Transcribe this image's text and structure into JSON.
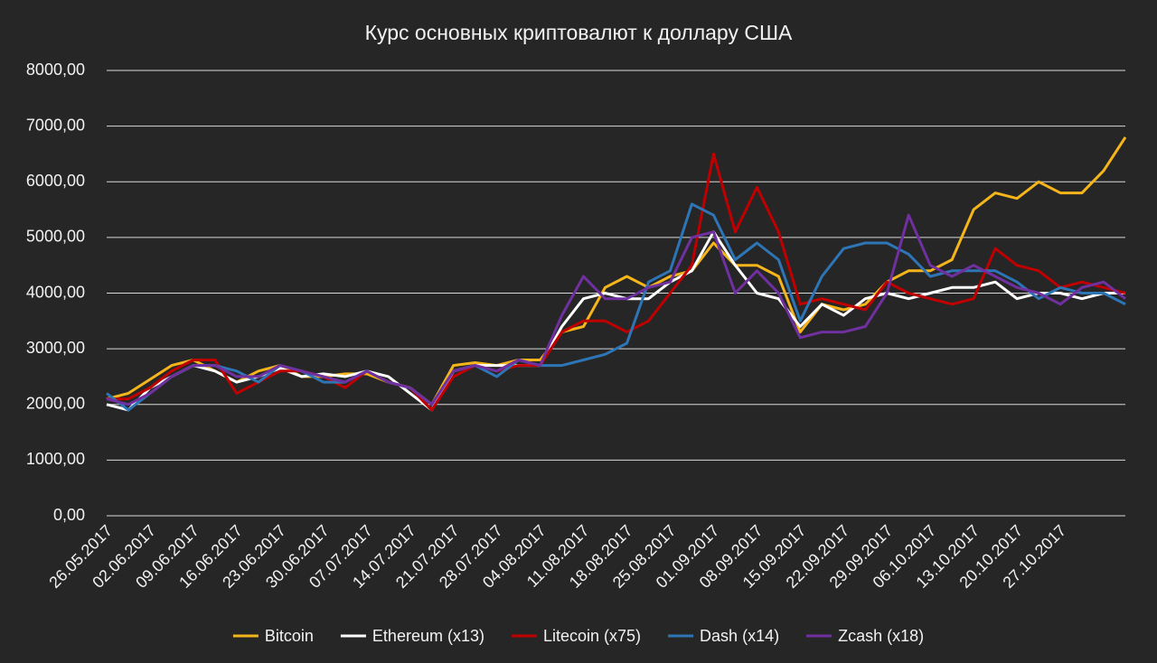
{
  "chart_data": {
    "type": "line",
    "title": "Курс основных криптовалют к доллару США",
    "categories": [
      "26.05.2017",
      null,
      "02.06.2017",
      null,
      "09.06.2017",
      null,
      "16.06.2017",
      null,
      "23.06.2017",
      null,
      "30.06.2017",
      null,
      "07.07.2017",
      null,
      "14.07.2017",
      null,
      "21.07.2017",
      null,
      "28.07.2017",
      null,
      "04.08.2017",
      null,
      "11.08.2017",
      null,
      "18.08.2017",
      null,
      "25.08.2017",
      null,
      "01.09.2017",
      null,
      "08.09.2017",
      null,
      "15.09.2017",
      null,
      "22.09.2017",
      null,
      "29.09.2017",
      null,
      "06.10.2017",
      null,
      "13.10.2017",
      null,
      "20.10.2017",
      null,
      "27.10.2017",
      null,
      null,
      null
    ],
    "series": [
      {
        "name": "Bitcoin",
        "color": "#f5b51b",
        "values": [
          2100,
          2200,
          2450,
          2700,
          2800,
          2600,
          2400,
          2600,
          2700,
          2500,
          2500,
          2550,
          2550,
          2400,
          2300,
          2000,
          2700,
          2750,
          2700,
          2800,
          2800,
          3300,
          3400,
          4100,
          4300,
          4100,
          4300,
          4400,
          4900,
          4500,
          4500,
          4300,
          3300,
          3800,
          3700,
          3800,
          4200,
          4400,
          4400,
          4600,
          5500,
          5800,
          5700,
          6000,
          5800,
          5800,
          6200,
          6800
        ]
      },
      {
        "name": "Ethereum (x13)",
        "color": "#ffffff",
        "values": [
          2000,
          1900,
          2300,
          2500,
          2700,
          2600,
          2400,
          2500,
          2650,
          2500,
          2550,
          2500,
          2600,
          2500,
          2200,
          1900,
          2600,
          2700,
          2700,
          2700,
          2700,
          3400,
          3900,
          4000,
          3900,
          3900,
          4200,
          4400,
          5100,
          4500,
          4000,
          3900,
          3400,
          3800,
          3600,
          3900,
          4000,
          3900,
          4000,
          4100,
          4100,
          4200,
          3900,
          4000,
          4000,
          3900,
          4000,
          4000
        ]
      },
      {
        "name": "Litecoin (x75)",
        "color": "#c00000",
        "values": [
          2100,
          2100,
          2300,
          2600,
          2800,
          2800,
          2200,
          2400,
          2600,
          2600,
          2500,
          2300,
          2600,
          2400,
          2300,
          1900,
          2500,
          2700,
          2600,
          2700,
          2700,
          3300,
          3500,
          3500,
          3300,
          3500,
          4000,
          4500,
          6500,
          5100,
          5900,
          5100,
          3800,
          3900,
          3800,
          3700,
          4200,
          4000,
          3900,
          3800,
          3900,
          4800,
          4500,
          4400,
          4100,
          4200,
          4100,
          4000
        ]
      },
      {
        "name": "Dash (x14)",
        "color": "#2e75b6",
        "values": [
          2200,
          1900,
          2200,
          2500,
          2700,
          2700,
          2600,
          2400,
          2700,
          2600,
          2400,
          2400,
          2600,
          2400,
          2300,
          2000,
          2600,
          2700,
          2500,
          2800,
          2700,
          2700,
          2800,
          2900,
          3100,
          4200,
          4400,
          5600,
          5400,
          4600,
          4900,
          4600,
          3500,
          4300,
          4800,
          4900,
          4900,
          4700,
          4300,
          4400,
          4400,
          4400,
          4200,
          3900,
          4100,
          4000,
          4000,
          3800
        ]
      },
      {
        "name": "Zcash (x18)",
        "color": "#7030a0",
        "values": [
          2100,
          2000,
          2200,
          2500,
          2700,
          2700,
          2500,
          2500,
          2700,
          2600,
          2500,
          2400,
          2600,
          2400,
          2300,
          2000,
          2600,
          2700,
          2600,
          2800,
          2700,
          3600,
          4300,
          3900,
          3900,
          4100,
          4200,
          5000,
          5100,
          4000,
          4400,
          4000,
          3200,
          3300,
          3300,
          3400,
          4000,
          5400,
          4500,
          4300,
          4500,
          4300,
          4100,
          4000,
          3800,
          4100,
          4200,
          3900
        ]
      }
    ],
    "ylim": [
      0,
      8000
    ],
    "yticks": [
      {
        "value": 0,
        "label": "0,00"
      },
      {
        "value": 1000,
        "label": "1000,00"
      },
      {
        "value": 2000,
        "label": "2000,00"
      },
      {
        "value": 3000,
        "label": "3000,00"
      },
      {
        "value": 4000,
        "label": "4000,00"
      },
      {
        "value": 5000,
        "label": "5000,00"
      },
      {
        "value": 6000,
        "label": "6000,00"
      },
      {
        "value": 7000,
        "label": "7000,00"
      },
      {
        "value": 8000,
        "label": "8000,00"
      }
    ],
    "grid": true,
    "legend": "bottom"
  }
}
